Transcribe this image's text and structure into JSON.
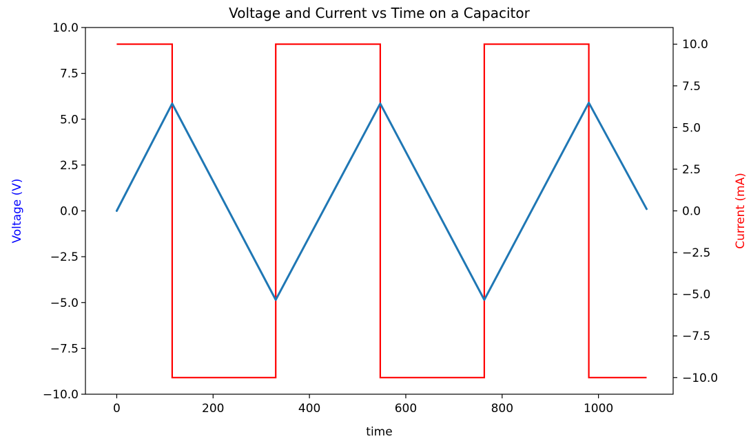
{
  "chart_data": {
    "type": "line",
    "title": "Voltage and Current vs Time on a Capacitor",
    "xlabel": "time",
    "ylabel_left": "Voltage (V)",
    "ylabel_right": "Current (mA)",
    "xlim": [
      -65,
      1155
    ],
    "ylim_left": [
      -10.0,
      10.0
    ],
    "ylim_right": [
      -11.0,
      11.0
    ],
    "x_ticks": [
      0,
      200,
      400,
      600,
      800,
      1000
    ],
    "y_left_ticks": [
      -10.0,
      -7.5,
      -5.0,
      -2.5,
      0.0,
      2.5,
      5.0,
      7.5,
      10.0
    ],
    "y_right_ticks": [
      -10.0,
      -7.5,
      -5.0,
      -2.5,
      0.0,
      2.5,
      5.0,
      7.5,
      10.0
    ],
    "grid": false,
    "colors": {
      "voltage": "#1f77b4",
      "current": "#ff0000",
      "left_label": "#0000ff",
      "right_label": "#ff0000"
    },
    "series": [
      {
        "axis": "left",
        "x": [
          0,
          115,
          330,
          547,
          763,
          980,
          1100
        ],
        "values": [
          0.0,
          5.85,
          -4.85,
          5.85,
          -4.85,
          5.9,
          0.1
        ]
      },
      {
        "axis": "right",
        "step": true,
        "x": [
          0,
          115,
          115,
          330,
          330,
          547,
          547,
          763,
          763,
          980,
          980,
          1100
        ],
        "values": [
          10,
          10,
          -10,
          -10,
          10,
          10,
          -10,
          -10,
          10,
          10,
          -10,
          -10
        ]
      }
    ]
  }
}
